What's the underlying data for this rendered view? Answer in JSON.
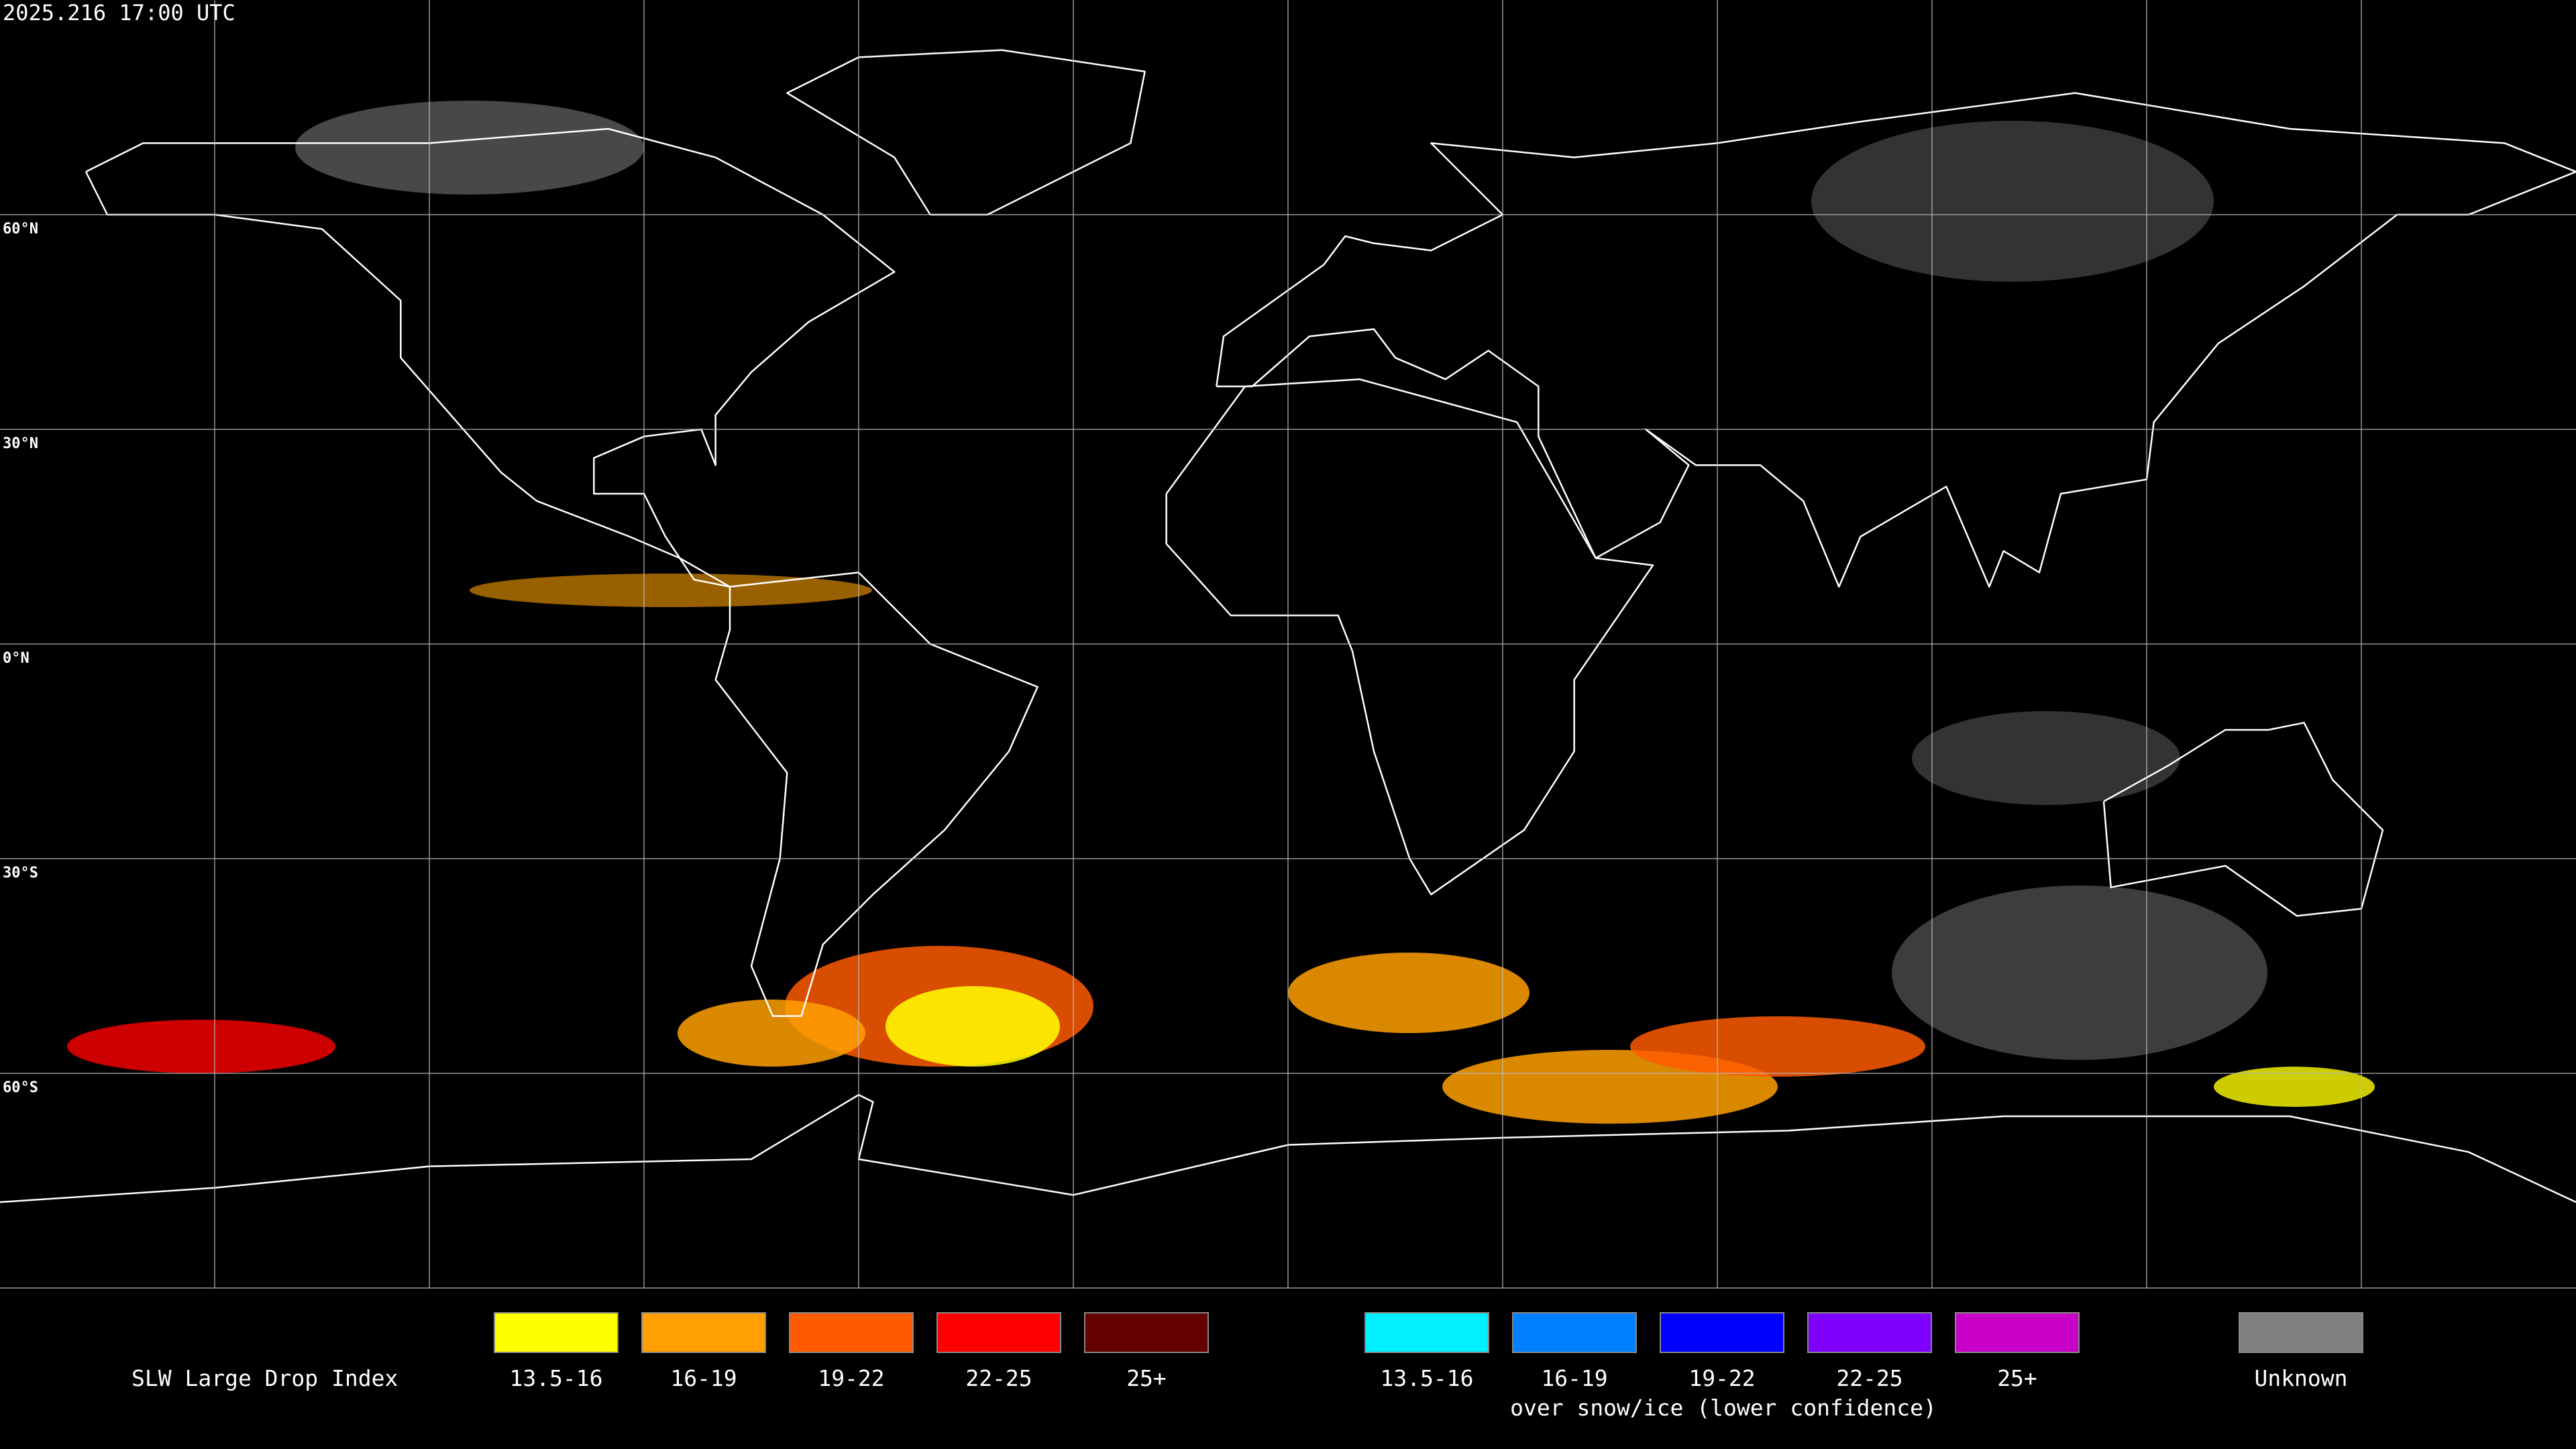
{
  "header": {
    "timestamp": "2025.216 17:00 UTC"
  },
  "map": {
    "latitude_labels": [
      "60°N",
      "30°N",
      "0°N",
      "30°S",
      "60°S"
    ]
  },
  "legend": {
    "title": "SLW Large Drop Index",
    "items": [
      {
        "label": "13.5-16",
        "color": "#ffff00"
      },
      {
        "label": "16-19",
        "color": "#ffa000"
      },
      {
        "label": "19-22",
        "color": "#ff5a00"
      },
      {
        "label": "22-25",
        "color": "#ff0000"
      },
      {
        "label": "25+",
        "color": "#640000"
      }
    ],
    "snow_items": [
      {
        "label": "13.5-16",
        "color": "#00f0ff"
      },
      {
        "label": "16-19",
        "color": "#0080ff"
      },
      {
        "label": "19-22",
        "color": "#0000ff"
      },
      {
        "label": "22-25",
        "color": "#8000ff"
      },
      {
        "label": "25+",
        "color": "#c800c8"
      }
    ],
    "snow_note": "over snow/ice (lower confidence)",
    "unknown": {
      "label": "Unknown",
      "color": "#808080"
    }
  }
}
